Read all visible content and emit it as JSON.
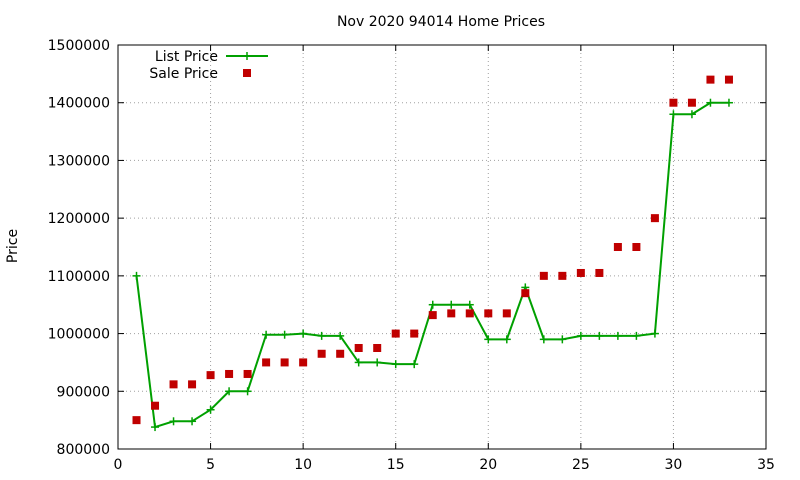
{
  "chart_data": {
    "type": "line",
    "title": "Nov 2020 94014 Home Prices",
    "xlabel": "",
    "ylabel": "Price",
    "xlim": [
      0,
      35
    ],
    "ylim": [
      800000,
      1500000
    ],
    "x_ticks": [
      0,
      5,
      10,
      15,
      20,
      25,
      30,
      35
    ],
    "y_ticks": [
      800000,
      900000,
      1000000,
      1100000,
      1200000,
      1300000,
      1400000,
      1500000
    ],
    "grid": true,
    "legend_position": "top-left",
    "series": [
      {
        "name": "List Price",
        "kind": "line",
        "marker": "plus",
        "color": "#00a000",
        "x": [
          1,
          2,
          3,
          4,
          5,
          6,
          7,
          8,
          9,
          10,
          11,
          12,
          13,
          14,
          15,
          16,
          17,
          18,
          19,
          20,
          21,
          22,
          23,
          24,
          25,
          26,
          27,
          28,
          29,
          30,
          31,
          32,
          33
        ],
        "y": [
          1100000,
          838000,
          848000,
          848000,
          868000,
          900000,
          900000,
          998000,
          998000,
          1000000,
          996000,
          996000,
          950000,
          950000,
          947000,
          947000,
          1050000,
          1050000,
          1050000,
          990000,
          990000,
          1080000,
          990000,
          990000,
          996000,
          996000,
          996000,
          996000,
          1000000,
          1380000,
          1380000,
          1400000,
          1400000
        ]
      },
      {
        "name": "Sale Price",
        "kind": "scatter",
        "marker": "square",
        "color": "#c00000",
        "x": [
          1,
          2,
          3,
          4,
          5,
          6,
          7,
          8,
          9,
          10,
          11,
          12,
          13,
          14,
          15,
          16,
          17,
          18,
          19,
          20,
          21,
          22,
          23,
          24,
          25,
          26,
          27,
          28,
          29,
          30,
          31,
          32,
          33
        ],
        "y": [
          850000,
          875000,
          912000,
          912000,
          928000,
          930000,
          930000,
          950000,
          950000,
          950000,
          965000,
          965000,
          975000,
          975000,
          1000000,
          1000000,
          1032000,
          1035000,
          1035000,
          1035000,
          1035000,
          1070000,
          1100000,
          1100000,
          1105000,
          1105000,
          1150000,
          1150000,
          1200000,
          1400000,
          1400000,
          1440000,
          1440000
        ]
      }
    ]
  }
}
